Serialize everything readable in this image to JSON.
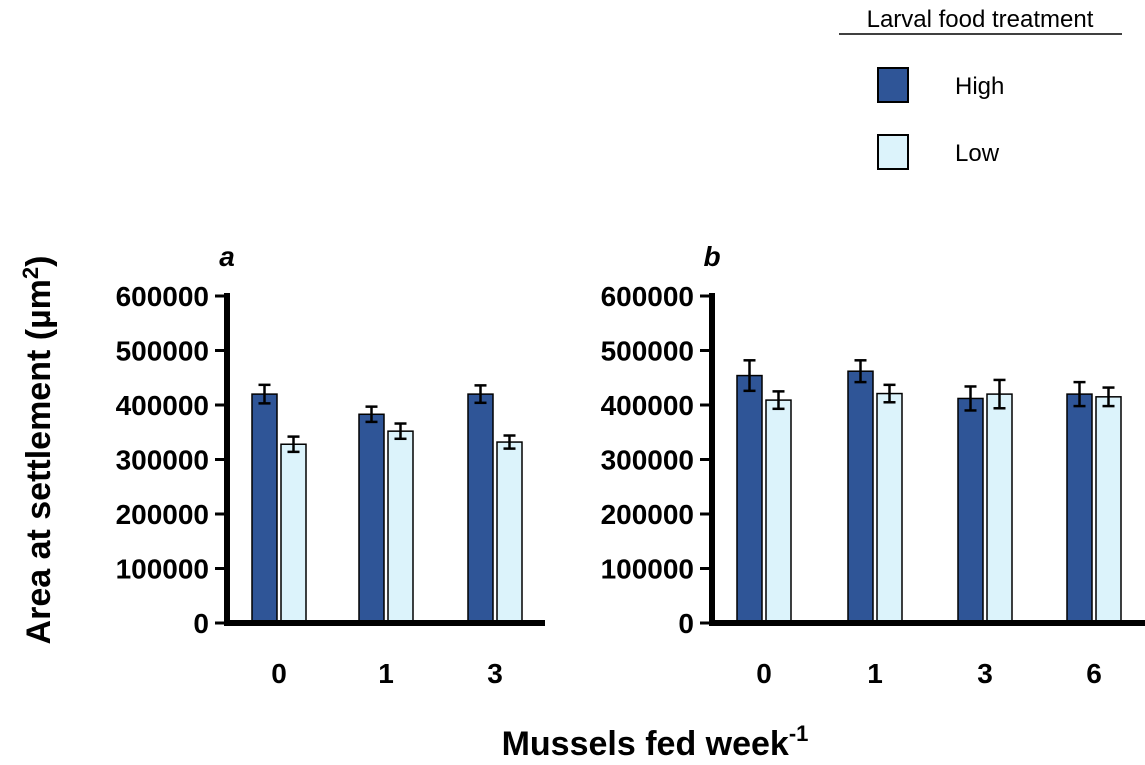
{
  "legend": {
    "title": "Larval food treatment",
    "items": [
      {
        "label": "High",
        "color": "#2f5597"
      },
      {
        "label": "Low",
        "color": "#dcf3fb"
      }
    ]
  },
  "ylabel": {
    "main": "Area at settlement (µm",
    "sup": "2",
    "end": ")"
  },
  "xlabel": {
    "main": "Mussels fed week",
    "sup": "-1"
  },
  "colors": {
    "high": "#2f5597",
    "low": "#dcf3fb",
    "axis": "#000000"
  },
  "chart_data": [
    {
      "type": "bar",
      "panel": "a",
      "categories": [
        "0",
        "1",
        "3"
      ],
      "series": [
        {
          "name": "High",
          "values": [
            420000,
            383000,
            420000
          ],
          "errors": [
            17000,
            14000,
            16000
          ]
        },
        {
          "name": "Low",
          "values": [
            328000,
            352000,
            332000
          ],
          "errors": [
            14000,
            14000,
            12000
          ]
        }
      ],
      "ylim": [
        0,
        600000
      ],
      "yticks": [
        "0",
        "100000",
        "200000",
        "300000",
        "400000",
        "500000",
        "600000"
      ]
    },
    {
      "type": "bar",
      "panel": "b",
      "categories": [
        "0",
        "1",
        "3",
        "6"
      ],
      "series": [
        {
          "name": "High",
          "values": [
            454000,
            462000,
            412000,
            420000
          ],
          "errors": [
            28000,
            20000,
            22000,
            22000
          ]
        },
        {
          "name": "Low",
          "values": [
            409000,
            421000,
            420000,
            415000
          ],
          "errors": [
            16000,
            16000,
            26000,
            17000
          ]
        }
      ],
      "ylim": [
        0,
        600000
      ],
      "yticks": [
        "0",
        "100000",
        "200000",
        "300000",
        "400000",
        "500000",
        "600000"
      ]
    }
  ]
}
